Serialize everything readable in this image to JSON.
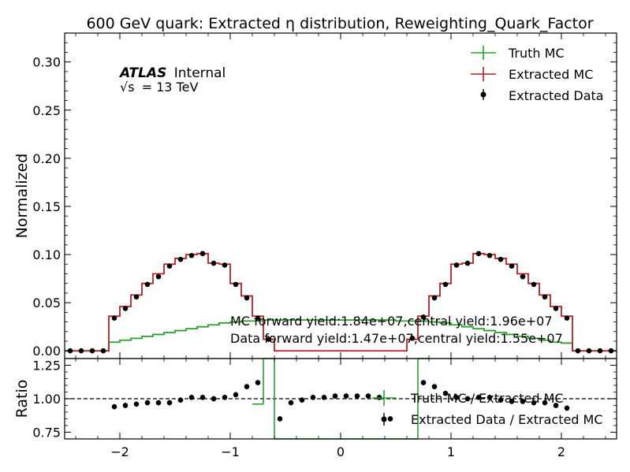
{
  "chart_data": [
    {
      "type": "line",
      "title": "600 GeV quark: Extracted η distribution, Reweighting_Quark_Factor",
      "ylabel": "Normalized",
      "xlim": [
        -2.5,
        2.5
      ],
      "ylim": [
        -0.008,
        0.33
      ],
      "yticks": [
        "0.00",
        "0.05",
        "0.10",
        "0.15",
        "0.20",
        "0.25",
        "0.30"
      ],
      "ytick_values": [
        0.0,
        0.05,
        0.1,
        0.15,
        0.2,
        0.25,
        0.3
      ],
      "experiment": {
        "name": "ATLAS",
        "status": "Internal",
        "energy_sqrt": "√s",
        "energy_value": "= 13 TeV"
      },
      "legend_position": "top-right",
      "annotations": [
        "MC forward yield:1.84e+07,central yield:1.96e+07",
        "Data forward yield:1.47e+07,central yield:1.55e+07"
      ],
      "bin_edges": [
        -2.5,
        -2.4,
        -2.3,
        -2.2,
        -2.1,
        -2.0,
        -1.9,
        -1.8,
        -1.7,
        -1.6,
        -1.5,
        -1.4,
        -1.3,
        -1.2,
        -1.1,
        -1.0,
        -0.9,
        -0.8,
        -0.7,
        -0.6,
        -0.5,
        -0.4,
        -0.3,
        -0.2,
        -0.1,
        0.0,
        0.1,
        0.2,
        0.3,
        0.4,
        0.5,
        0.6,
        0.7,
        0.8,
        0.9,
        1.0,
        1.1,
        1.2,
        1.3,
        1.4,
        1.5,
        1.6,
        1.7,
        1.8,
        1.9,
        2.0,
        2.1,
        2.2,
        2.3,
        2.4,
        2.5
      ],
      "series": [
        {
          "name": "Truth MC",
          "kind": "step",
          "color": "#2ca02c",
          "values": [
            0.0,
            0.0,
            0.0,
            0.0,
            0.009,
            0.011,
            0.013,
            0.015,
            0.017,
            0.019,
            0.021,
            0.023,
            0.025,
            0.027,
            0.029,
            0.03,
            0.031,
            0.031,
            0.032,
            0.032,
            0.032,
            0.032,
            0.032,
            0.032,
            0.032,
            0.032,
            0.032,
            0.032,
            0.032,
            0.032,
            0.031,
            0.031,
            0.031,
            0.03,
            0.029,
            0.027,
            0.025,
            0.023,
            0.021,
            0.019,
            0.017,
            0.015,
            0.013,
            0.011,
            0.009,
            0.008,
            0.0,
            0.0,
            0.0,
            0.0
          ]
        },
        {
          "name": "Extracted MC",
          "kind": "step",
          "color": "#b22222",
          "values": [
            0.0,
            0.0,
            0.0,
            0.0,
            0.036,
            0.046,
            0.058,
            0.07,
            0.08,
            0.09,
            0.096,
            0.1,
            0.101,
            0.091,
            0.09,
            0.07,
            0.057,
            0.036,
            0.012,
            0.0,
            0.0,
            0.0,
            0.0,
            0.0,
            0.0,
            0.0,
            0.0,
            0.0,
            0.0,
            0.0,
            0.0,
            0.012,
            0.036,
            0.057,
            0.07,
            0.09,
            0.091,
            0.101,
            0.1,
            0.096,
            0.09,
            0.08,
            0.07,
            0.058,
            0.046,
            0.036,
            0.0,
            0.0,
            0.0,
            0.0
          ]
        },
        {
          "name": "Extracted Data",
          "kind": "points",
          "color": "#000000",
          "x": [
            -2.45,
            -2.35,
            -2.25,
            -2.15,
            -2.05,
            -1.95,
            -1.85,
            -1.75,
            -1.65,
            -1.55,
            -1.45,
            -1.35,
            -1.25,
            -1.15,
            -1.05,
            -0.95,
            -0.85,
            -0.75,
            -0.65,
            0.65,
            0.75,
            0.85,
            0.95,
            1.05,
            1.15,
            1.25,
            1.35,
            1.45,
            1.55,
            1.65,
            1.75,
            1.85,
            1.95,
            2.05,
            2.15,
            2.25,
            2.35,
            2.45
          ],
          "y": [
            0.0,
            0.0,
            0.0,
            0.0,
            0.034,
            0.044,
            0.056,
            0.069,
            0.077,
            0.088,
            0.095,
            0.099,
            0.101,
            0.091,
            0.089,
            0.069,
            0.055,
            0.034,
            0.012,
            0.013,
            0.035,
            0.055,
            0.069,
            0.089,
            0.091,
            0.101,
            0.099,
            0.095,
            0.088,
            0.077,
            0.069,
            0.056,
            0.044,
            0.034,
            0.0,
            0.0,
            0.0,
            0.0
          ],
          "yerr": 0.0018
        }
      ]
    },
    {
      "type": "line",
      "ylabel": "Ratio",
      "xlim": [
        -2.5,
        2.5
      ],
      "ylim": [
        0.7,
        1.3
      ],
      "yticks": [
        "0.75",
        "1.00",
        "1.25"
      ],
      "ytick_values": [
        0.75,
        1.0,
        1.25
      ],
      "xticks": [
        "−2",
        "−1",
        "0",
        "1",
        "2"
      ],
      "xtick_values": [
        -2,
        -1,
        0,
        1,
        2
      ],
      "reference_line": 1.0,
      "legend_position": "bottom-right",
      "series": [
        {
          "name": "Truth MC / Extracted MC",
          "kind": "step",
          "color": "#2ca02c",
          "bin_edges": [
            -0.8,
            -0.7,
            -0.6,
            0.6,
            0.7,
            0.8
          ],
          "values": [
            0.96,
            2.7,
            -1.0,
            -1.0,
            2.7
          ]
        },
        {
          "name": "Extracted Data / Extracted MC",
          "kind": "points",
          "color": "#000000",
          "x": [
            -2.05,
            -1.95,
            -1.85,
            -1.75,
            -1.65,
            -1.55,
            -1.45,
            -1.35,
            -1.25,
            -1.15,
            -1.05,
            -0.95,
            -0.85,
            -0.75,
            -0.55,
            -0.45,
            -0.35,
            -0.25,
            -0.15,
            -0.05,
            0.05,
            0.15,
            0.25,
            0.35,
            0.45,
            0.75,
            0.85,
            0.95,
            1.05,
            1.15,
            1.25,
            1.35,
            1.45,
            1.55,
            1.65,
            1.75,
            1.85,
            1.95,
            2.05
          ],
          "y": [
            0.94,
            0.95,
            0.96,
            0.97,
            0.97,
            0.97,
            0.99,
            1.01,
            1.01,
            1.0,
            1.01,
            1.03,
            1.09,
            1.12,
            0.85,
            0.97,
            0.99,
            1.01,
            1.01,
            1.02,
            1.02,
            1.02,
            1.02,
            1.01,
            0.85,
            1.12,
            1.09,
            1.04,
            1.01,
            1.0,
            1.01,
            1.01,
            0.99,
            0.98,
            0.98,
            0.97,
            0.97,
            0.95,
            0.93
          ],
          "yerr": 0.02
        }
      ]
    }
  ]
}
